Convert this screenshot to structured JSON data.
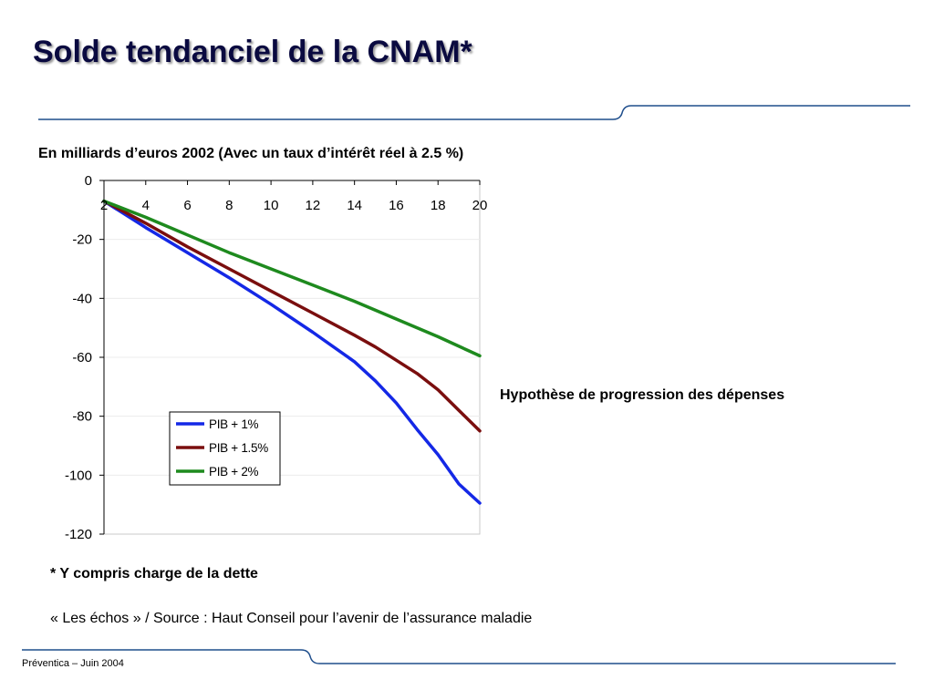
{
  "slide": {
    "title": "Solde tendanciel de la CNAM*",
    "subtitle": "En milliards d’euros 2002 (Avec un taux d’intérêt réel à 2.5 %)",
    "side_label": "Hypothèse de progression des dépenses",
    "note": "* Y compris charge de la dette",
    "source": "« Les échos » / Source : Haut Conseil pour l’avenir de l’assurance maladie",
    "footer": "Préventica – Juin 2004",
    "colors": {
      "title": "#0a0a40",
      "rule": "#1f4e8c"
    }
  },
  "chart_data": {
    "type": "line",
    "xlim": [
      2,
      20
    ],
    "ylim": [
      -120,
      0
    ],
    "x_ticks": [
      2,
      4,
      6,
      8,
      10,
      12,
      14,
      16,
      18,
      20
    ],
    "y_ticks": [
      0,
      -20,
      -40,
      -60,
      -80,
      -100,
      -120
    ],
    "legend_position": "bottom-left",
    "grid": "horizontal",
    "series": [
      {
        "name": "PIB + 1%",
        "color": "#1428e6",
        "x": [
          2,
          4,
          6,
          8,
          10,
          12,
          14,
          15,
          16,
          17,
          18,
          19,
          20
        ],
        "y": [
          -7,
          -16,
          -24.5,
          -33,
          -42,
          -51.5,
          -61.5,
          -68,
          -75.5,
          -84.5,
          -93,
          -103,
          -109.5
        ]
      },
      {
        "name": "PIB + 1.5%",
        "color": "#7a0e0e",
        "x": [
          2,
          4,
          6,
          8,
          10,
          12,
          14,
          15,
          16,
          17,
          18,
          19,
          20
        ],
        "y": [
          -7,
          -14.5,
          -22.5,
          -30,
          -37.5,
          -45,
          -52.5,
          -56.5,
          -61,
          -65.5,
          -71,
          -78,
          -85
        ]
      },
      {
        "name": "PIB + 2%",
        "color": "#1e8a1e",
        "x": [
          2,
          4,
          6,
          8,
          10,
          12,
          14,
          16,
          18,
          20
        ],
        "y": [
          -7,
          -12.5,
          -18.5,
          -24.5,
          -30,
          -35.5,
          -41,
          -47,
          -53,
          -59.5
        ]
      }
    ]
  }
}
